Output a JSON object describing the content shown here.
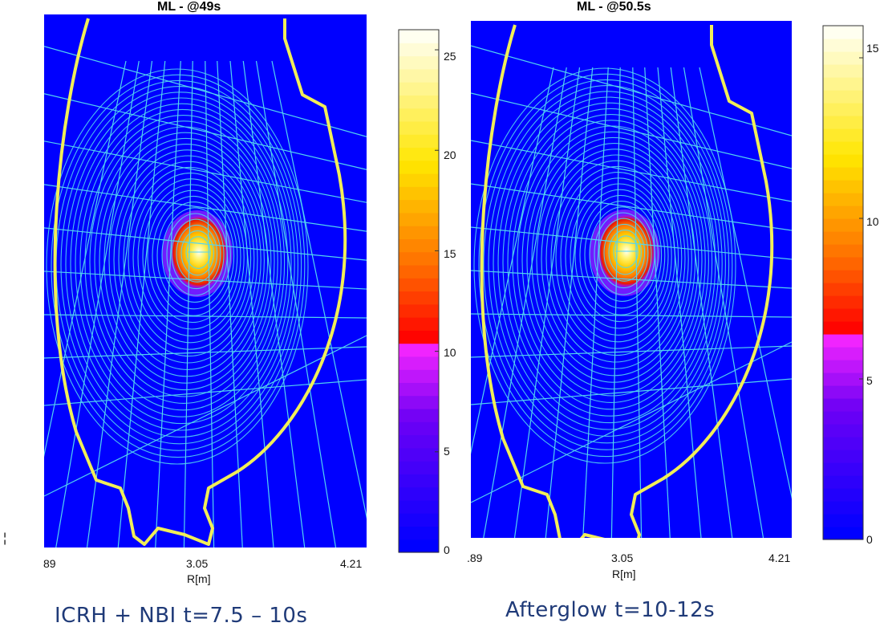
{
  "chart_data": [
    {
      "type": "heatmap",
      "title": "ML - @49s",
      "xlabel": "R[m]",
      "x_ticks": [
        "89",
        "3.05",
        "4.21"
      ],
      "colorbar": {
        "ticks": [
          "0",
          "5",
          "10",
          "15",
          "20",
          "25"
        ],
        "range": [
          0,
          26
        ]
      },
      "peak_value": 25,
      "caption": "ICRH + NBI  t=7.5 – 10s"
    },
    {
      "type": "heatmap",
      "title": "ML - @50.5s",
      "xlabel": "R[m]",
      "x_ticks": [
        ".89",
        "3.05",
        "4.21"
      ],
      "colorbar": {
        "ticks": [
          "0",
          "5",
          "10",
          "15"
        ],
        "range": [
          0,
          16
        ]
      },
      "peak_value": 15,
      "caption": "Afterglow  t=10-12s"
    }
  ],
  "colors": {
    "background": "#0000ff",
    "boundary": "#f1ee58",
    "grid_lines": "#52d4f0",
    "hot_core": "#ffffd0"
  }
}
